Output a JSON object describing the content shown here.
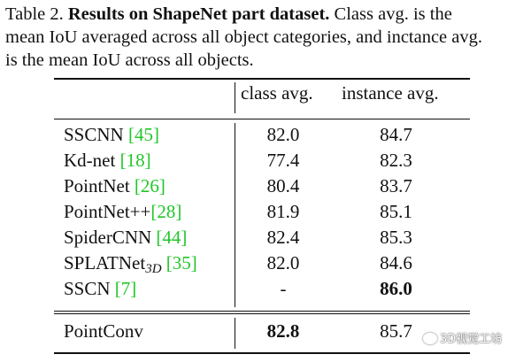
{
  "caption": {
    "line1_prefix": "Table 2. ",
    "line1_bold": "Results on ShapeNet part dataset.",
    "line1_suffix": " Class avg. is the",
    "line2": "mean IoU averaged across all object categories, and inctance avg.",
    "line3": "is the mean IoU across all objects."
  },
  "header": {
    "col1": "class avg.",
    "col2": "instance avg."
  },
  "rows": [
    {
      "method": "SSCNN ",
      "ref": "[45]",
      "class_avg": "82.0",
      "instance_avg": "84.7"
    },
    {
      "method": "Kd-net ",
      "ref": "[18]",
      "class_avg": "77.4",
      "instance_avg": "82.3"
    },
    {
      "method": "PointNet ",
      "ref": "[26]",
      "class_avg": "80.4",
      "instance_avg": "83.7"
    },
    {
      "method": "PointNet++",
      "ref": "[28]",
      "class_avg": "81.9",
      "instance_avg": "85.1"
    },
    {
      "method": "SpiderCNN ",
      "ref": "[44]",
      "class_avg": "82.4",
      "instance_avg": "85.3"
    },
    {
      "method": "SPLATNet",
      "method_sub": "3D",
      "ref": "[35]",
      "class_avg": "82.0",
      "instance_avg": "84.6"
    },
    {
      "method": "SSCN ",
      "ref": "[7]",
      "class_avg": "-",
      "instance_avg": "86.0"
    }
  ],
  "footer_row": {
    "method": "PointConv",
    "class_avg": "82.8",
    "instance_avg": "85.7"
  },
  "watermark": "3D视觉工坊",
  "colors": {
    "reference_link": "#22c62a",
    "text": "#111111"
  }
}
